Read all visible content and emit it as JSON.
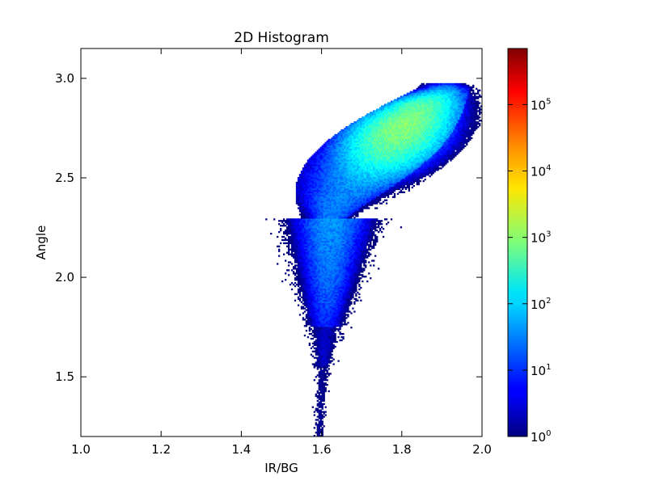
{
  "chart_data": {
    "type": "heatmap",
    "title": "2D Histogram",
    "xlabel": "IR/BG",
    "ylabel": "Angle",
    "xlim": [
      1.0,
      2.0
    ],
    "ylim": [
      1.2,
      3.15
    ],
    "x_ticks": [
      1.0,
      1.2,
      1.4,
      1.6,
      1.8,
      2.0
    ],
    "x_tick_labels": [
      "1.0",
      "1.2",
      "1.4",
      "1.6",
      "1.8",
      "2.0"
    ],
    "y_ticks": [
      1.5,
      2.0,
      2.5,
      3.0
    ],
    "y_tick_labels": [
      "1.5",
      "2.0",
      "2.5",
      "3.0"
    ],
    "grid": false,
    "colormap": "jet",
    "colorbar": {
      "scale": "log",
      "range": [
        1,
        700000
      ],
      "tick_values": [
        1,
        10,
        100,
        1000,
        10000,
        100000
      ],
      "tick_bases": [
        "10",
        "10",
        "10",
        "10",
        "10",
        "10"
      ],
      "tick_exponents": [
        "0",
        "1",
        "2",
        "3",
        "4",
        "5"
      ]
    },
    "density_regions": [
      {
        "x": [
          1.58,
          1.95
        ],
        "y": [
          2.3,
          2.95
        ],
        "peak_count": 1000,
        "note": "main dense band, peak near IR/BG 1.8, Angle 2.8"
      },
      {
        "x": [
          1.55,
          1.67
        ],
        "y": [
          1.6,
          2.5
        ],
        "peak_count": 30,
        "note": "sparse tail extending downward"
      },
      {
        "x": [
          1.58,
          1.61
        ],
        "y": [
          1.2,
          1.6
        ],
        "peak_count": 3,
        "note": "few scattered counts"
      }
    ]
  }
}
